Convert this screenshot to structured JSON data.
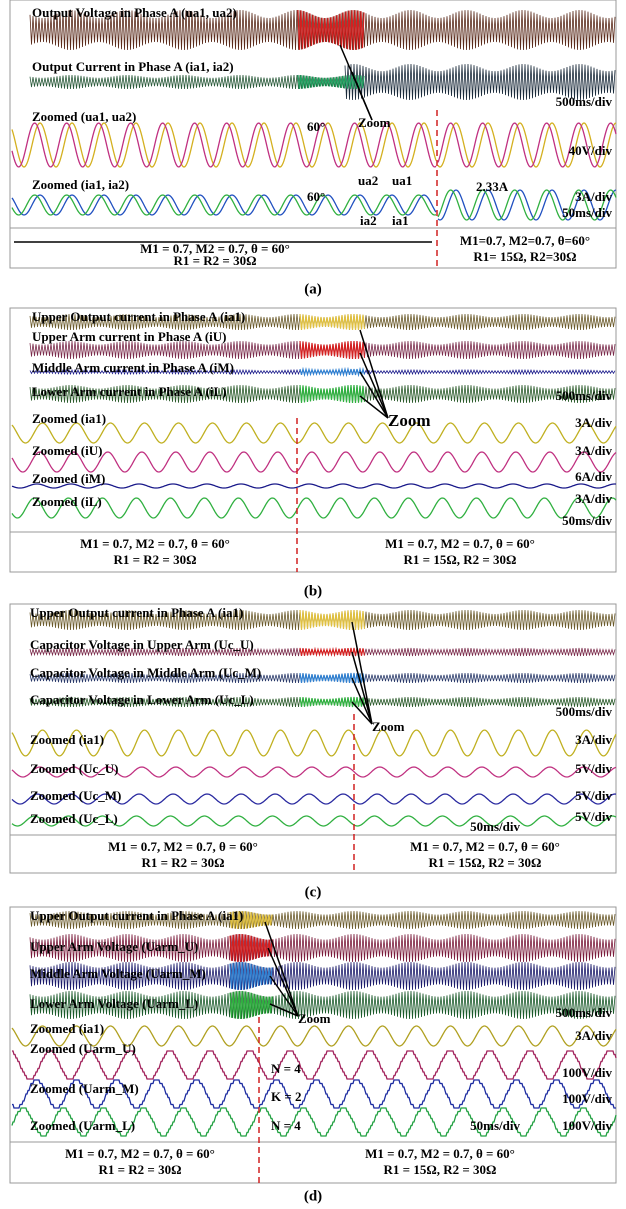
{
  "panels": [
    {
      "label": "(a)",
      "traces": [
        "Output Voltage in Phase A (ua1, ua2)",
        "Output Current in Phase A (ia1, ia2)",
        "Zoomed (ua1, ua2)",
        "Zoomed (ia1, ia2)"
      ],
      "scales": [
        "500ms/div",
        "40V/div",
        "3A/div",
        "50ms/div"
      ],
      "annotations": [
        "Zoom",
        "60°",
        "60°",
        "ua2",
        "ua1",
        "ia2",
        "ia1",
        "2.33A"
      ],
      "conditions_left": [
        "M1 = 0.7, M2 = 0.7, θ = 60°",
        "R1 = R2 = 30Ω"
      ],
      "conditions_right": [
        "M1=0.7, M2=0.7, θ=60°",
        "R1= 15Ω, R2=30Ω"
      ]
    },
    {
      "label": "(b)",
      "traces": [
        "Upper Output current in Phase A (ia1)",
        "Upper Arm current in Phase A (iU)",
        "Middle Arm current in Phase A (iM)",
        "Lower Arm current in Phase A (iL)",
        "Zoomed (ia1)",
        "Zoomed (iU)",
        "Zoomed (iM)",
        "Zoomed (iL)"
      ],
      "scales": [
        "500ms/div",
        "3A/div",
        "3A/div",
        "6A/div",
        "3A/div",
        "50ms/div"
      ],
      "annotations": [
        "Zoom"
      ],
      "conditions_left": [
        "M1 = 0.7, M2 = 0.7, θ = 60°",
        "R1 = R2 = 30Ω"
      ],
      "conditions_right": [
        "M1 = 0.7, M2 = 0.7, θ = 60°",
        "R1 = 15Ω, R2 = 30Ω"
      ]
    },
    {
      "label": "(c)",
      "traces": [
        "Upper Output current in Phase A (ia1)",
        "Capacitor Voltage in Upper Arm (Uc_U)",
        "Capacitor Voltage in Middle Arm (Uc_M)",
        "Capacitor Voltage in Lower Arm (Uc_L)",
        "Zoomed (ia1)",
        "Zoomed (Uc_U)",
        "Zoomed (Uc_M)",
        "Zoomed (Uc_L)"
      ],
      "scales": [
        "500ms/div",
        "3A/div",
        "5V/div",
        "5V/div",
        "5V/div",
        "50ms/div"
      ],
      "annotations": [
        "Zoom"
      ],
      "conditions_left": [
        "M1 = 0.7, M2 = 0.7, θ = 60°",
        "R1 = R2 = 30Ω"
      ],
      "conditions_right": [
        "M1 = 0.7, M2 = 0.7, θ = 60°",
        "R1 = 15Ω, R2 = 30Ω"
      ]
    },
    {
      "label": "(d)",
      "traces": [
        "Upper Output current in Phase A (ia1)",
        "Upper Arm Voltage (Uarm_U)",
        "Middle Arm Voltage (Uarm_M)",
        "Lower Arm Voltage (Uarm_L)",
        "Zoomed (ia1)",
        "Zoomed (Uarm_U)",
        "Zoomed (Uarm_M)",
        "Zoomed (Uarm_L)"
      ],
      "scales": [
        "500ms/div",
        "3A/div",
        "100V/div",
        "100V/div",
        "100V/div",
        "50ms/div"
      ],
      "annotations": [
        "Zoom",
        "N = 4",
        "K = 2",
        "N = 4"
      ],
      "conditions_left": [
        "M1 = 0.7, M2 = 0.7, θ = 60°",
        "R1 = R2 = 30Ω"
      ],
      "conditions_right": [
        "M1 = 0.7, M2 = 0.7, θ = 60°",
        "R1 = 15Ω, R2 = 30Ω"
      ]
    }
  ]
}
